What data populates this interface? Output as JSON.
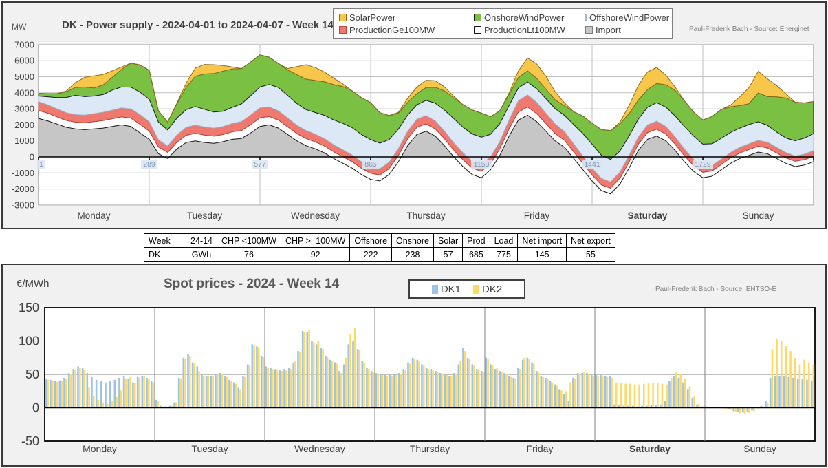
{
  "chart_data": [
    {
      "type": "area",
      "stacked": true,
      "title": "DK - Power supply - 2024-04-01 to 2024-04-07 - Week 14",
      "unit_label": "MW",
      "attribution": "Paul-Frederik Bach - Source: Energinet",
      "ylim": [
        -3000,
        7000
      ],
      "y_ticks": [
        7000,
        6000,
        5000,
        4000,
        3000,
        2000,
        1000,
        0,
        -1000,
        -2000,
        -3000
      ],
      "x_tick_labels": [
        "1",
        "289",
        "577",
        "865",
        "1153",
        "1441",
        "1729"
      ],
      "day_labels": [
        "Monday",
        "Tuesday",
        "Wednesday",
        "Thursday",
        "Friday",
        "Saturday",
        "Sunday"
      ],
      "bold_day_index": 5,
      "grid": true,
      "legend_position": "top",
      "x_step_hours": 2,
      "legend": [
        {
          "label": "SolarPower",
          "fill": "#F7C64B",
          "stroke": "#8C6D1F"
        },
        {
          "label": "OnshoreWindPower",
          "fill": "#7AC143",
          "stroke": "#1A1A1A"
        },
        {
          "label": "OffshoreWindPower",
          "fill": "#DCE8F6",
          "stroke": "#A3B8CE"
        },
        {
          "label": "ProductionGe100MW",
          "fill": "#F0796F",
          "stroke": "#B94743"
        },
        {
          "label": "ProductionLt100MW",
          "fill": "#FFFFFF",
          "stroke": "#1A1A1A"
        },
        {
          "label": "Import",
          "fill": "#C6C6C6",
          "stroke": "#7F7F7F"
        }
      ],
      "series": [
        {
          "name": "Import",
          "fill": "#C6C6C6",
          "stroke": "#7F7F7F",
          "values": [
            2400,
            2250,
            2050,
            1850,
            1750,
            1700,
            1750,
            1800,
            1900,
            2000,
            1900,
            1500,
            1100,
            200,
            -100,
            500,
            900,
            1000,
            900,
            850,
            950,
            1100,
            1150,
            1500,
            1900,
            2000,
            1800,
            1400,
            1000,
            700,
            500,
            250,
            -100,
            -400,
            -700,
            -1100,
            -1400,
            -1500,
            -1100,
            -300,
            700,
            1400,
            1600,
            1300,
            700,
            0,
            -600,
            -1100,
            -1300,
            -800,
            100,
            1300,
            2300,
            2600,
            2200,
            1600,
            1000,
            600,
            -100,
            -800,
            -1500,
            -2100,
            -2300,
            -1700,
            -700,
            400,
            1100,
            1300,
            1000,
            400,
            -300,
            -900,
            -1300,
            -1200,
            -800,
            -400,
            -100,
            100,
            300,
            200,
            -100,
            -400,
            -600,
            -500,
            -300
          ]
        },
        {
          "name": "ProductionLt100MW",
          "fill": "#FFFFFF",
          "stroke": "#1A1A1A",
          "values": [
            500,
            480,
            450,
            430,
            420,
            430,
            450,
            470,
            480,
            500,
            520,
            540,
            520,
            420,
            380,
            420,
            450,
            470,
            460,
            450,
            450,
            470,
            500,
            520,
            540,
            520,
            500,
            480,
            460,
            450,
            440,
            430,
            420,
            410,
            400,
            390,
            380,
            370,
            380,
            400,
            430,
            450,
            460,
            450,
            440,
            430,
            420,
            410,
            400,
            390,
            420,
            460,
            500,
            520,
            500,
            480,
            460,
            440,
            420,
            400,
            380,
            360,
            350,
            360,
            380,
            400,
            420,
            430,
            420,
            400,
            380,
            360,
            340,
            330,
            330,
            340,
            350,
            360,
            370,
            360,
            350,
            340,
            330,
            330,
            340
          ]
        },
        {
          "name": "ProductionGe100MW",
          "fill": "#F0796F",
          "stroke": "#B94743",
          "values": [
            550,
            520,
            500,
            480,
            470,
            480,
            500,
            520,
            540,
            560,
            580,
            600,
            580,
            450,
            400,
            450,
            500,
            520,
            510,
            500,
            500,
            520,
            560,
            600,
            620,
            600,
            580,
            550,
            520,
            500,
            480,
            460,
            440,
            430,
            420,
            410,
            400,
            390,
            400,
            430,
            470,
            500,
            520,
            500,
            480,
            460,
            440,
            420,
            430,
            420,
            460,
            550,
            700,
            750,
            700,
            650,
            600,
            550,
            500,
            450,
            420,
            400,
            390,
            400,
            420,
            450,
            480,
            500,
            480,
            450,
            420,
            390,
            360,
            340,
            330,
            340,
            350,
            360,
            370,
            360,
            350,
            340,
            330,
            340,
            360
          ]
        },
        {
          "name": "OffshoreWindPower",
          "fill": "#DCE8F6",
          "stroke": "#A3B8CE",
          "values": [
            350,
            500,
            700,
            950,
            1200,
            1150,
            1100,
            1100,
            1250,
            1300,
            1350,
            1400,
            1400,
            1100,
            1000,
            1050,
            1100,
            1150,
            1100,
            1000,
            950,
            1000,
            1100,
            1200,
            1300,
            1400,
            1450,
            1400,
            1350,
            1300,
            1350,
            1450,
            1550,
            1650,
            1700,
            1700,
            1700,
            1600,
            1400,
            1200,
            1000,
            900,
            950,
            1100,
            1300,
            1500,
            1600,
            1700,
            1700,
            1400,
            1100,
            900,
            800,
            800,
            850,
            900,
            950,
            1000,
            1200,
            1400,
            1500,
            1450,
            1400,
            1300,
            1200,
            1100,
            1100,
            1150,
            1200,
            1300,
            1400,
            1450,
            1400,
            1350,
            1300,
            1250,
            1200,
            1200,
            1150,
            1050,
            950,
            900,
            950,
            1000,
            1050
          ]
        },
        {
          "name": "OnshoreWindPower",
          "fill": "#7AC143",
          "stroke": "#1A1A1A",
          "values": [
            160,
            200,
            250,
            350,
            500,
            600,
            500,
            600,
            800,
            1100,
            1500,
            1700,
            1800,
            700,
            500,
            900,
            1400,
            1900,
            2200,
            2400,
            2500,
            2400,
            2200,
            2100,
            2000,
            1700,
            1500,
            1600,
            1800,
            1900,
            2000,
            2100,
            2200,
            2300,
            2300,
            2300,
            2300,
            1900,
            1500,
            1000,
            800,
            700,
            800,
            1000,
            1200,
            1300,
            1400,
            1500,
            1500,
            1100,
            800,
            700,
            650,
            700,
            650,
            600,
            550,
            600,
            800,
            1100,
            1300,
            1600,
            1800,
            1700,
            1400,
            1200,
            1100,
            1200,
            1400,
            1600,
            1600,
            1500,
            1500,
            1700,
            1800,
            1600,
            1400,
            1300,
            1800,
            1800,
            2200,
            2500,
            2400,
            2200,
            2000
          ]
        },
        {
          "name": "SolarPower",
          "fill": "#F7C64B",
          "stroke": "#8C6D1F",
          "values": [
            0,
            0,
            0,
            50,
            300,
            600,
            750,
            650,
            400,
            150,
            0,
            0,
            0,
            0,
            0,
            40,
            250,
            500,
            600,
            550,
            350,
            120,
            0,
            0,
            0,
            0,
            0,
            80,
            500,
            900,
            800,
            600,
            400,
            150,
            0,
            0,
            0,
            0,
            0,
            50,
            250,
            400,
            450,
            400,
            250,
            100,
            0,
            0,
            0,
            0,
            0,
            80,
            400,
            800,
            900,
            800,
            500,
            180,
            0,
            0,
            0,
            0,
            0,
            100,
            500,
            900,
            1100,
            1000,
            600,
            200,
            0,
            0,
            0,
            0,
            0,
            100,
            550,
            1000,
            1350,
            1100,
            700,
            250,
            0,
            0,
            0
          ]
        }
      ]
    },
    {
      "type": "bar",
      "title": "Spot prices - 2024 - Week 14",
      "unit_label": "€/MWh",
      "attribution": "Paul-Frederik Bach - Source: ENTSO-E",
      "ylim": [
        -50,
        150
      ],
      "y_ticks": [
        150,
        100,
        50,
        0,
        -50
      ],
      "day_labels": [
        "Monday",
        "Tuesday",
        "Wednesday",
        "Thursday",
        "Friday",
        "Saturday",
        "Sunday"
      ],
      "bold_day_index": 5,
      "grid": true,
      "legend_position": "top",
      "x_step_hours": 1,
      "series": [
        {
          "name": "DK1",
          "color": "#9DC3E6",
          "values": [
            44,
            42,
            40,
            41,
            45,
            52,
            58,
            62,
            60,
            52,
            46,
            42,
            40,
            38,
            40,
            42,
            45,
            47,
            44,
            38,
            46,
            48,
            45,
            40,
            12,
            3,
            2,
            3,
            8,
            45,
            75,
            80,
            68,
            62,
            50,
            48,
            48,
            50,
            52,
            48,
            42,
            38,
            30,
            48,
            65,
            95,
            92,
            78,
            62,
            60,
            58,
            56,
            58,
            60,
            68,
            85,
            115,
            114,
            100,
            95,
            90,
            78,
            72,
            68,
            55,
            65,
            95,
            100,
            88,
            70,
            60,
            55,
            52,
            50,
            49,
            49,
            50,
            52,
            58,
            68,
            75,
            72,
            65,
            60,
            58,
            55,
            52,
            50,
            48,
            52,
            65,
            90,
            75,
            65,
            58,
            55,
            75,
            65,
            58,
            55,
            52,
            48,
            45,
            60,
            72,
            75,
            68,
            55,
            48,
            45,
            40,
            35,
            28,
            20,
            10,
            45,
            52,
            52,
            52,
            50,
            50,
            49,
            48,
            47,
            5,
            4,
            3,
            3,
            3,
            2,
            3,
            3,
            4,
            4,
            5,
            10,
            40,
            48,
            45,
            38,
            28,
            15,
            5,
            2,
            2,
            1,
            1,
            0,
            -1,
            -2,
            -5,
            -6,
            -7,
            -6,
            -4,
            0,
            3,
            10,
            45,
            47,
            48,
            47,
            46,
            45,
            44,
            43,
            42,
            41
          ]
        },
        {
          "name": "DK2",
          "color": "#FFD966",
          "values": [
            42,
            40,
            39,
            40,
            44,
            50,
            56,
            60,
            57,
            30,
            18,
            12,
            8,
            6,
            10,
            16,
            26,
            44,
            46,
            37,
            45,
            47,
            44,
            38,
            10,
            2,
            2,
            3,
            8,
            44,
            74,
            78,
            66,
            55,
            48,
            48,
            48,
            50,
            50,
            46,
            40,
            36,
            28,
            46,
            63,
            93,
            90,
            76,
            60,
            58,
            57,
            55,
            56,
            58,
            70,
            83,
            113,
            117,
            98,
            100,
            88,
            76,
            70,
            66,
            52,
            75,
            110,
            120,
            86,
            68,
            58,
            53,
            50,
            49,
            48,
            48,
            49,
            51,
            56,
            66,
            73,
            70,
            63,
            58,
            56,
            54,
            51,
            49,
            47,
            51,
            70,
            85,
            73,
            63,
            56,
            54,
            73,
            63,
            60,
            53,
            50,
            46,
            44,
            58,
            75,
            73,
            66,
            53,
            46,
            43,
            38,
            33,
            26,
            25,
            38,
            43,
            50,
            53,
            50,
            48,
            48,
            47,
            46,
            45,
            38,
            37,
            36,
            36,
            35,
            35,
            36,
            37,
            38,
            37,
            36,
            35,
            45,
            53,
            50,
            44,
            32,
            18,
            6,
            2,
            1,
            1,
            0,
            -1,
            -2,
            -3,
            -6,
            -8,
            -9,
            -8,
            -5,
            -1,
            2,
            8,
            88,
            103,
            100,
            92,
            85,
            75,
            65,
            72,
            68,
            65
          ]
        }
      ]
    }
  ],
  "summary_table": {
    "headers": [
      "Week",
      "24-14",
      "CHP <100MW",
      "CHP >=100MW",
      "Offshore",
      "Onshore",
      "Solar",
      "Prod",
      "Load",
      "Net import",
      "Net export"
    ],
    "rows": [
      [
        "DK",
        "GWh",
        "76",
        "92",
        "222",
        "238",
        "57",
        "685",
        "775",
        "145",
        "55"
      ]
    ]
  },
  "colors": {
    "figure_background": "#F1F1F1",
    "plot_background": "#FFFFFF",
    "gridline": "#BFBFBF",
    "axis": "#000000",
    "day_gridline": "#A6A6A6",
    "tick_label_blue": "#7C95B5",
    "tick_label_bg": "#DCE6F2",
    "text_dark": "#404040"
  }
}
